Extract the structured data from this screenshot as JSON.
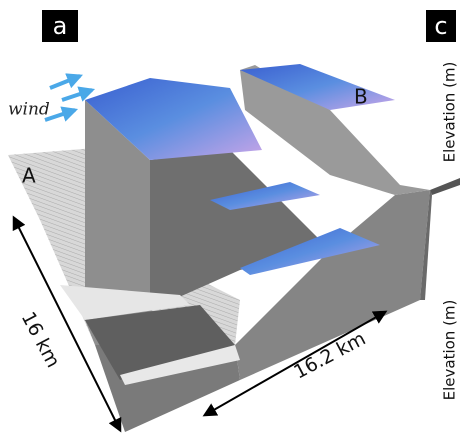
{
  "panel_labels": [
    "a",
    "c"
  ],
  "wind": "wind",
  "points": [
    "A",
    "B"
  ],
  "dimensions": [
    "16 km",
    "16.2 km"
  ],
  "axis_labels": [
    "Elevation (m)",
    "Elevation (m)"
  ]
}
